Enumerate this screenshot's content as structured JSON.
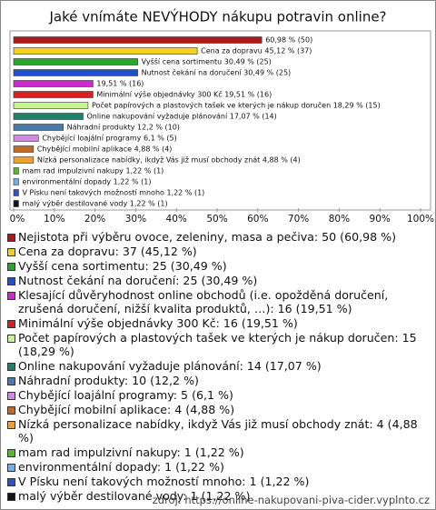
{
  "chart_data": {
    "type": "hbar",
    "title": "Jaké vnímáte NEVÝHODY nákupu potravin online?",
    "values": [
      60.98,
      45.12,
      30.49,
      30.49,
      19.51,
      19.51,
      18.29,
      17.07,
      12.2,
      6.1,
      4.88,
      4.88,
      1.22,
      1.22,
      1.22,
      1.22
    ],
    "value_labels": [
      "60,98 % (50)",
      "Cena za dopravu 45,12 % (37)",
      "Vyšší cena sortimentu 30,49 % (25)",
      "Nutnost čekání na doručení 30,49 % (25)",
      "19,51 % (16)",
      "Minimální výše objednávky 300 Kč 19,51 % (16)",
      "Počet papírových a plastových tašek ve kterých je nákup doručen 18,29 % (15)",
      "Online nakupování vyžaduje plánování 17,07 % (14)",
      "Náhradní produkty 12,2 % (10)",
      "Chybějící loajální programy 6,1 % (5)",
      "Chybějící mobilní aplikace 4,88 % (4)",
      "Nízká personalizace nabídky, ikdyž Vás již musí obchody znát 4,88 % (4)",
      "mam rad impulzivní nakupy 1,22 % (1)",
      "environmentální dopady 1,22 % (1)",
      "V Písku není takových možností mnoho 1,22 % (1)",
      "malý výběr destilované vody 1,22 % (1)"
    ],
    "colors": [
      "#b01818",
      "#f5d020",
      "#28a828",
      "#2050d0",
      "#d028d0",
      "#d82020",
      "#c8f490",
      "#20806a",
      "#4a7aa8",
      "#d088e0",
      "#c06a28",
      "#eea030",
      "#58b828",
      "#70b0e8",
      "#2f50c8",
      "#151515"
    ],
    "legend": [
      "Nejistota při výběru ovoce, zeleniny, masa a pečiva: 50 (60,98 %)",
      "Cena za dopravu: 37 (45,12 %)",
      "Vyšší cena sortimentu: 25 (30,49 %)",
      "Nutnost čekání na doručení: 25 (30,49 %)",
      "Klesající důvěryhodnost online obchodů (i.e. opožděná doručení, zrušená doručení, nižší kvalita produktů, …): 16 (19,51 %)",
      "Minimální výše objednávky 300 Kč: 16 (19,51 %)",
      "Počet papírových a plastových tašek ve kterých je nákup doručen: 15 (18,29 %)",
      "Online nakupování vyžaduje plánování: 14 (17,07 %)",
      "Náhradní produkty: 10 (12,2 %)",
      "Chybějící loajální programy: 5 (6,1 %)",
      "Chybějící mobilní aplikace: 4 (4,88 %)",
      "Nízká personalizace nabídky, ikdyž Vás již musí obchody znát: 4 (4,88 %)",
      "mam rad impulzivní nakupy: 1 (1,22 %)",
      "environmentální dopady: 1 (1,22 %)",
      "V Písku není takových možností mnoho: 1 (1,22 %)",
      "malý výběr destilované vody: 1 (1,22 %)"
    ],
    "xlim": [
      0,
      100
    ],
    "xticks": [
      {
        "value": 0,
        "label": "0%"
      },
      {
        "value": 10,
        "label": "10%"
      },
      {
        "value": 20,
        "label": "20%"
      },
      {
        "value": 30,
        "label": "30%"
      },
      {
        "value": 40,
        "label": "40%"
      },
      {
        "value": 50,
        "label": "50%"
      },
      {
        "value": 60,
        "label": "60%"
      },
      {
        "value": 70,
        "label": "70%"
      },
      {
        "value": 80,
        "label": "80%"
      },
      {
        "value": 90,
        "label": "90%"
      },
      {
        "value": 100,
        "label": "100%"
      }
    ],
    "source": "zdroj: https://online-nakupovani-piva-cider.vyplnto.cz"
  }
}
